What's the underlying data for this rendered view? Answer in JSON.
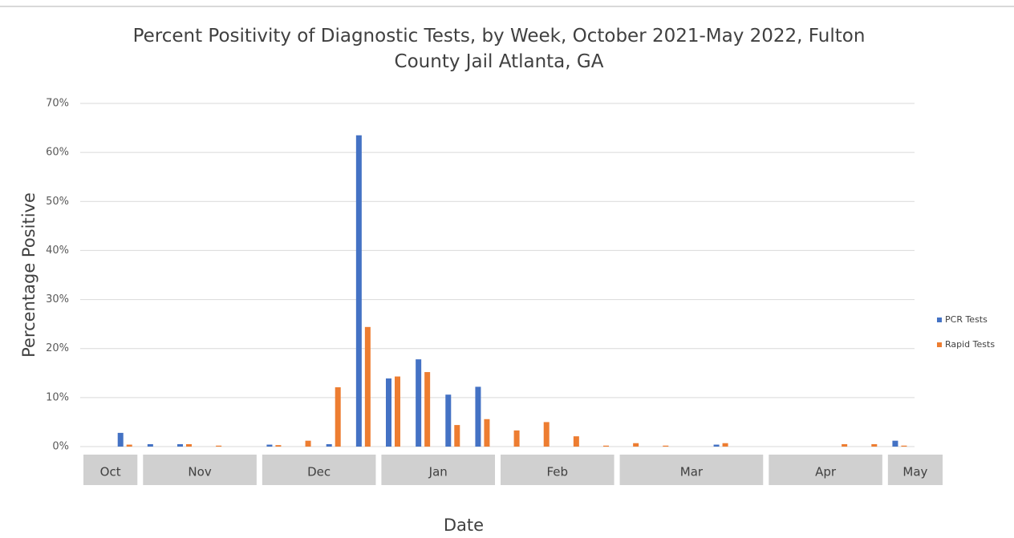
{
  "chart_data": {
    "type": "bar",
    "title": "Percent Positivity of Diagnostic Tests, by Week, October 2021-May 2022, Fulton County Jail Atlanta, GA",
    "x_label": "Date",
    "y_label": "Percentage Positive",
    "categories": [
      "Oct",
      null,
      "Nov",
      null,
      null,
      null,
      "Dec",
      null,
      null,
      null,
      "Jan",
      null,
      null,
      null,
      "Feb",
      null,
      null,
      null,
      "Mar",
      null,
      null,
      null,
      null,
      "Apr",
      null,
      null,
      null,
      "May"
    ],
    "series": [
      {
        "name": "PCR Tests",
        "color": "#4472c4",
        "values": [
          null,
          2.8,
          0.5,
          0.5,
          null,
          null,
          0.4,
          null,
          0.5,
          63.5,
          13.9,
          17.8,
          10.6,
          12.2,
          null,
          null,
          null,
          null,
          null,
          null,
          null,
          0.4,
          null,
          null,
          null,
          null,
          null,
          1.2
        ]
      },
      {
        "name": "Rapid Tests",
        "color": "#ed7d31",
        "values": [
          null,
          0.4,
          null,
          0.5,
          0.2,
          null,
          0.3,
          1.2,
          12.1,
          24.4,
          14.3,
          15.2,
          4.4,
          5.6,
          3.3,
          5.0,
          2.1,
          0.2,
          0.7,
          0.2,
          null,
          0.7,
          null,
          null,
          null,
          0.5,
          0.5,
          0.2
        ]
      }
    ],
    "ylim": [
      0,
      70
    ],
    "yticks": [
      {
        "value": 0,
        "label": "0%"
      },
      {
        "value": 10,
        "label": "10%"
      },
      {
        "value": 20,
        "label": "20%"
      },
      {
        "value": 30,
        "label": "30%"
      },
      {
        "value": 40,
        "label": "40%"
      },
      {
        "value": 50,
        "label": "50%"
      },
      {
        "value": 60,
        "label": "60%"
      },
      {
        "value": 70,
        "label": "70%"
      }
    ],
    "grid": true,
    "legend": "right"
  }
}
